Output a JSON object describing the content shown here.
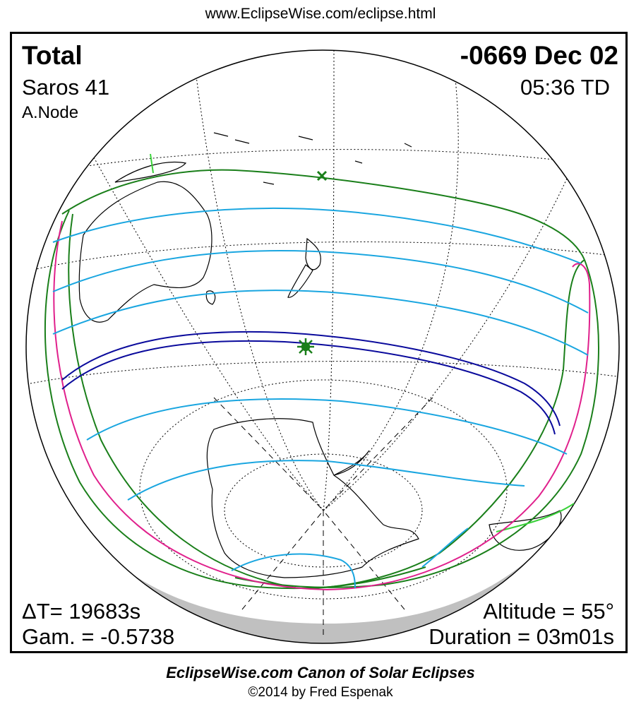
{
  "header": {
    "url": "www.EclipseWise.com/eclipse.html"
  },
  "eclipse": {
    "type": "Total",
    "date": "-0669 Dec 02",
    "saros": "Saros  41",
    "time": "05:36 TD",
    "node": "A.Node",
    "delta_t": "ΔT=  19683s",
    "gamma": "Gam. = -0.5738",
    "altitude": "Altitude = 55°",
    "duration": "Duration = 03m01s"
  },
  "colors": {
    "frame": "#000000",
    "night_side": "#c0c0c0",
    "penumbral_limit": "#1a7f1a",
    "partial_contours": "#1aa6e0",
    "totality_path": "#0a0a9c",
    "rise_set_curve": "#e0208c",
    "coastline": "#000000",
    "graticule": "#000000"
  },
  "markers": {
    "greatest_eclipse": "star-marker",
    "sub_solar_point": "x-marker"
  },
  "footer": {
    "title": "EclipseWise.com Canon of Solar Eclipses",
    "copyright": "©2014 by Fred Espenak"
  }
}
